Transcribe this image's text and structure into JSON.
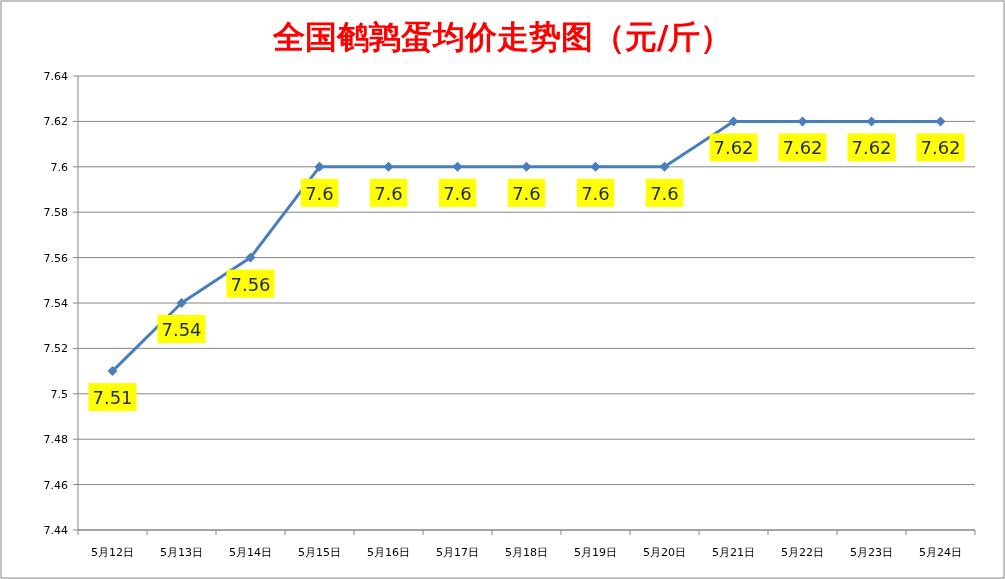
{
  "chart_data": {
    "type": "line",
    "title": "全国鹌鹑蛋均价走势图（元/斤）",
    "categories": [
      "5月12日",
      "5月13日",
      "5月14日",
      "5月15日",
      "5月16日",
      "5月17日",
      "5月18日",
      "5月19日",
      "5月20日",
      "5月21日",
      "5月22日",
      "5月23日",
      "5月24日"
    ],
    "series": [
      {
        "color": "#4a7ebb",
        "values": [
          7.51,
          7.54,
          7.56,
          7.6,
          7.6,
          7.6,
          7.6,
          7.6,
          7.6,
          7.62,
          7.62,
          7.62,
          7.62
        ]
      }
    ],
    "ylim": [
      7.44,
      7.64
    ],
    "yticks": [
      7.44,
      7.46,
      7.48,
      7.5,
      7.52,
      7.54,
      7.56,
      7.58,
      7.6,
      7.62,
      7.64
    ],
    "grid": "y",
    "marker": "diamond",
    "line_style": "solid",
    "data_labels": true
  }
}
